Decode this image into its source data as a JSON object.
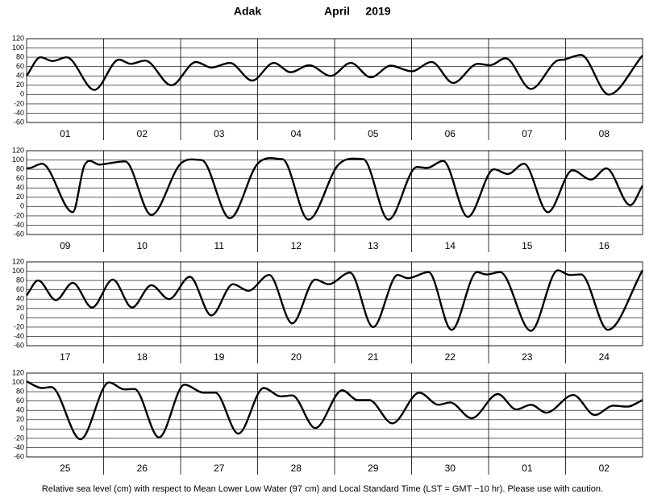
{
  "header": {
    "station": "Adak",
    "month": "April",
    "year": "2019"
  },
  "footer": "Relative sea level (cm) with respect to Mean Lower Low Water (97 cm) and Local Standard Time (LST = GMT −10 hr). Please use with caution.",
  "chart_data": [
    {
      "type": "line",
      "categories": [
        "01",
        "02",
        "03",
        "04",
        "05",
        "06",
        "07",
        "08"
      ],
      "xlim": [
        0,
        8
      ],
      "ylim": [
        -60,
        120
      ],
      "yticks": [
        -60,
        -40,
        -20,
        0,
        20,
        40,
        60,
        80,
        100,
        120
      ],
      "grid": true,
      "x": [
        0,
        0.18,
        0.34,
        0.52,
        0.88,
        1.2,
        1.35,
        1.54,
        1.88,
        2.2,
        2.4,
        2.64,
        2.93,
        3.21,
        3.43,
        3.67,
        3.95,
        4.21,
        4.47,
        4.73,
        5.0,
        5.26,
        5.54,
        5.86,
        6.02,
        6.22,
        6.55,
        6.88,
        6.98,
        7.2,
        7.56,
        8
      ],
      "series": [
        {
          "name": "Adak",
          "color": "#000000",
          "values": [
            40,
            80,
            72,
            80,
            10,
            75,
            66,
            73,
            20,
            70,
            58,
            68,
            30,
            68,
            48,
            63,
            40,
            68,
            37,
            62,
            50,
            70,
            25,
            66,
            63,
            78,
            12,
            72,
            75,
            85,
            0,
            84
          ]
        }
      ]
    },
    {
      "type": "line",
      "categories": [
        "09",
        "10",
        "11",
        "12",
        "13",
        "14",
        "15",
        "16"
      ],
      "xlim": [
        0,
        8
      ],
      "ylim": [
        -60,
        120
      ],
      "yticks": [
        -60,
        -40,
        -20,
        0,
        20,
        40,
        60,
        80,
        100,
        120
      ],
      "grid": true,
      "x": [
        0,
        0.05,
        0.2,
        0.6,
        0.75,
        0.95,
        1.28,
        1.62,
        2.0,
        2.27,
        2.64,
        3.0,
        3.32,
        3.66,
        4.05,
        4.37,
        4.7,
        5.07,
        5.2,
        5.41,
        5.73,
        6.07,
        6.25,
        6.46,
        6.77,
        7.09,
        7.33,
        7.53,
        7.84,
        8
      ],
      "series": [
        {
          "name": "Adak",
          "color": "#000000",
          "values": [
            82,
            83,
            92,
            -12,
            88,
            90,
            97,
            -18,
            92,
            100,
            -25,
            92,
            102,
            -28,
            90,
            102,
            -28,
            85,
            83,
            98,
            -22,
            80,
            70,
            92,
            -12,
            78,
            58,
            82,
            3,
            45
          ]
        }
      ]
    },
    {
      "type": "line",
      "categories": [
        "17",
        "18",
        "19",
        "20",
        "21",
        "22",
        "23",
        "24"
      ],
      "xlim": [
        0,
        8
      ],
      "ylim": [
        -60,
        120
      ],
      "yticks": [
        -60,
        -40,
        -20,
        0,
        20,
        40,
        60,
        80,
        100,
        120
      ],
      "grid": true,
      "x": [
        0,
        0.15,
        0.38,
        0.6,
        0.85,
        1.12,
        1.37,
        1.62,
        1.85,
        2.12,
        2.4,
        2.68,
        2.88,
        3.15,
        3.45,
        3.75,
        3.92,
        4.2,
        4.5,
        4.82,
        4.95,
        5.22,
        5.52,
        5.85,
        5.97,
        6.15,
        6.55,
        6.9,
        7.05,
        7.2,
        7.55,
        8
      ],
      "series": [
        {
          "name": "Adak",
          "color": "#000000",
          "values": [
            48,
            80,
            38,
            75,
            22,
            82,
            22,
            70,
            40,
            88,
            5,
            72,
            58,
            92,
            -12,
            82,
            72,
            97,
            -20,
            92,
            85,
            98,
            -26,
            98,
            93,
            98,
            -28,
            102,
            92,
            93,
            -26,
            102
          ]
        }
      ]
    },
    {
      "type": "line",
      "categories": [
        "25",
        "26",
        "27",
        "28",
        "29",
        "30",
        "01",
        "02"
      ],
      "xlim": [
        0,
        8
      ],
      "ylim": [
        -60,
        120
      ],
      "yticks": [
        -60,
        -40,
        -20,
        0,
        20,
        40,
        60,
        80,
        100,
        120
      ],
      "grid": true,
      "x": [
        0,
        0.2,
        0.32,
        0.7,
        1.07,
        1.27,
        1.4,
        1.72,
        2.05,
        2.3,
        2.45,
        2.75,
        3.08,
        3.3,
        3.45,
        3.75,
        4.1,
        4.3,
        4.45,
        4.75,
        5.1,
        5.35,
        5.5,
        5.78,
        6.12,
        6.36,
        6.55,
        6.75,
        7.1,
        7.38,
        7.62,
        7.8,
        8
      ],
      "series": [
        {
          "name": "Adak",
          "color": "#000000",
          "values": [
            102,
            88,
            90,
            -22,
            100,
            85,
            86,
            -18,
            95,
            78,
            78,
            -10,
            88,
            70,
            72,
            2,
            83,
            62,
            62,
            12,
            78,
            52,
            57,
            23,
            75,
            42,
            52,
            35,
            73,
            30,
            50,
            48,
            62
          ]
        }
      ]
    }
  ]
}
